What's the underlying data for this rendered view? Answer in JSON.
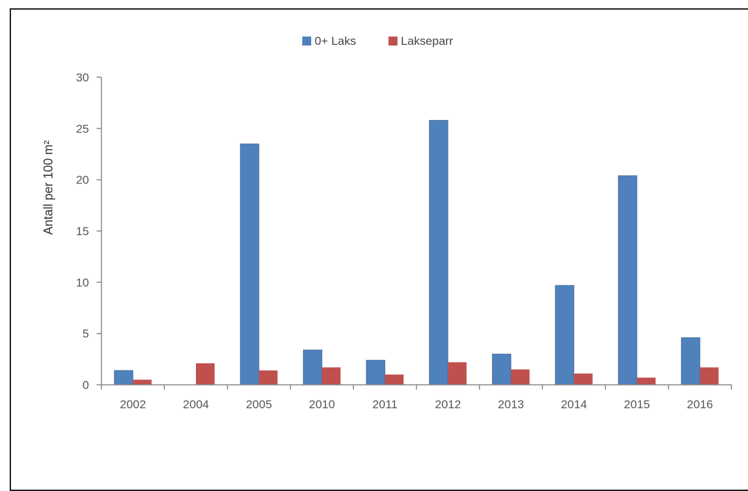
{
  "chart_data": {
    "type": "bar",
    "title": "",
    "xlabel": "",
    "ylabel": "Antall per 100 m²",
    "ylim": [
      0,
      30
    ],
    "yticks": [
      0,
      5,
      10,
      15,
      20,
      25,
      30
    ],
    "grid": false,
    "legend_position": "top-center",
    "categories": [
      "2002",
      "2004",
      "2005",
      "2010",
      "2011",
      "2012",
      "2013",
      "2014",
      "2015",
      "2016"
    ],
    "series": [
      {
        "name": "0+ Laks",
        "color": "#4f81bd",
        "values": [
          1.4,
          0,
          23.5,
          3.4,
          2.4,
          25.8,
          3.0,
          9.7,
          20.4,
          4.6
        ]
      },
      {
        "name": "Lakseparr",
        "color": "#c0504d",
        "values": [
          0.5,
          2.1,
          1.4,
          1.7,
          1.0,
          2.2,
          1.5,
          1.1,
          0.7,
          1.7
        ]
      }
    ]
  }
}
